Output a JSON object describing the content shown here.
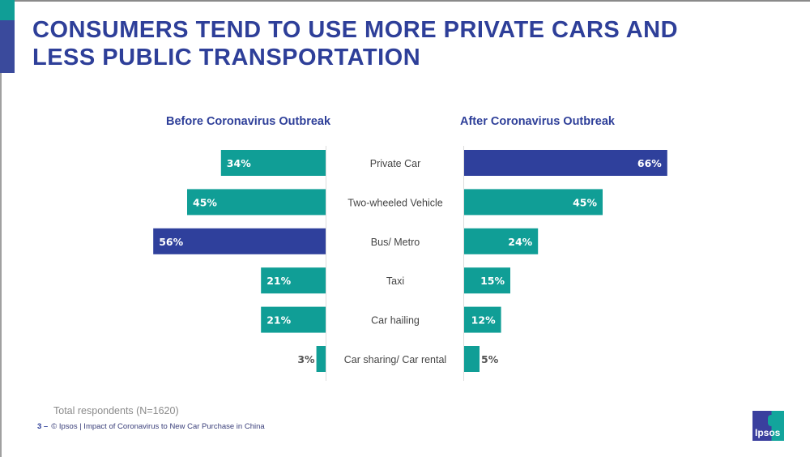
{
  "title_line1": "CONSUMERS TEND TO USE MORE PRIVATE CARS AND",
  "title_line2": "LESS PUBLIC TRANSPORTATION",
  "footnote": "Total respondents (N=1620)",
  "footer": {
    "page": "3 –",
    "text": "© Ipsos | Impact of Coronavirus to New Car Purchase in China"
  },
  "logo": "Ipsos",
  "colors": {
    "teal": "#109e96",
    "navy": "#2f409c"
  },
  "chart_data": {
    "type": "bar",
    "orientation": "horizontal-butterfly",
    "categories": [
      "Private Car",
      "Two-wheeled Vehicle",
      "Bus/ Metro",
      "Taxi",
      "Car hailing",
      "Car sharing/ Car rental"
    ],
    "series": [
      {
        "name": "Before Coronavirus Outbreak",
        "values": [
          34,
          45,
          56,
          21,
          21,
          3
        ],
        "highlight_index": 2
      },
      {
        "name": "After Coronavirus Outbreak",
        "values": [
          66,
          45,
          24,
          15,
          12,
          5
        ],
        "highlight_index": 0
      }
    ],
    "unit": "%"
  }
}
